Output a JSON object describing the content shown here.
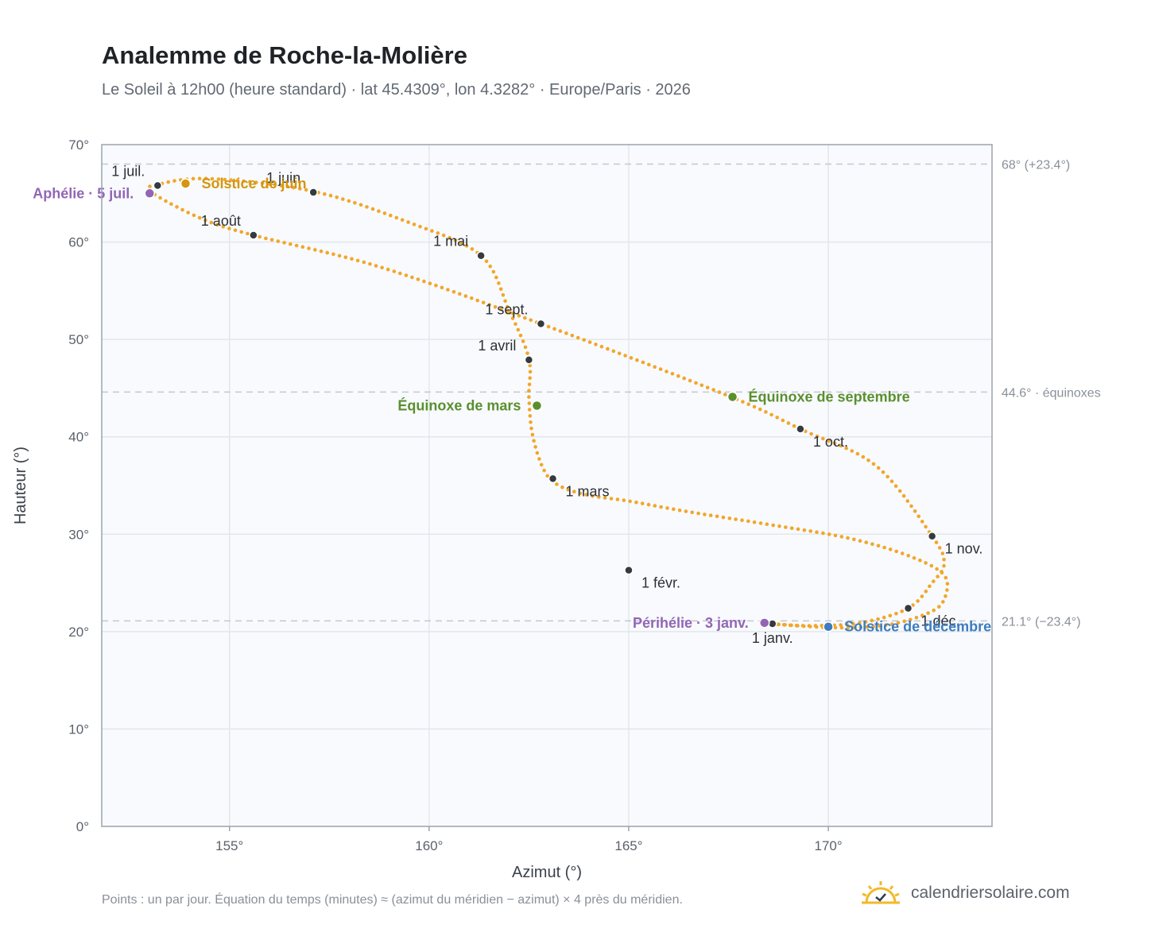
{
  "title": "Analemme de Roche-la-Molière",
  "subtitle": "Le Soleil à 12h00 (heure standard) · lat 45.4309°, lon 4.3282° · Europe/Paris · 2026",
  "footnote": "Points : un par jour. Équation du temps (minutes) ≈ (azimut du méridien − azimut) × 4 près du méridien.",
  "brand": {
    "name": "calendriersolaire.com",
    "logo_icon": "sun-check-icon"
  },
  "colors": {
    "curve": "#f2a62a",
    "month_marker": "#343a40",
    "solstice_june": "#d4960f",
    "solstice_december": "#3d7cc0",
    "equinox": "#5a8f2e",
    "aphelion_perihelion": "#9266b5",
    "plot_background": "#f8fafd",
    "grid": "#e3e7ec",
    "reference_line": "#c3c8cf"
  },
  "chart_data": {
    "type": "scatter",
    "xlabel": "Azimut (°)",
    "ylabel": "Hauteur (°)",
    "xlim": [
      151.8,
      174.1
    ],
    "ylim": [
      0,
      70
    ],
    "x_ticks": [
      155,
      160,
      165,
      170
    ],
    "x_tick_labels": [
      "155°",
      "160°",
      "165°",
      "170°"
    ],
    "y_ticks": [
      0,
      10,
      20,
      30,
      40,
      50,
      60,
      70
    ],
    "y_tick_labels": [
      "0°",
      "10°",
      "20°",
      "30°",
      "40°",
      "50°",
      "60°",
      "70°"
    ],
    "grid": true,
    "curve_points": [
      [
        168.6,
        20.8
      ],
      [
        170.2,
        20.4
      ],
      [
        171.5,
        20.7
      ],
      [
        172.5,
        21.9
      ],
      [
        172.9,
        23.3
      ],
      [
        172.9,
        25.8
      ],
      [
        172.0,
        27.8
      ],
      [
        170.5,
        29.6
      ],
      [
        168.5,
        31.0
      ],
      [
        166.5,
        32.3
      ],
      [
        165.0,
        33.4
      ],
      [
        164.0,
        34.0
      ],
      [
        163.3,
        34.9
      ],
      [
        162.9,
        36.4
      ],
      [
        162.6,
        40.0
      ],
      [
        162.5,
        44.0
      ],
      [
        162.5,
        48.0
      ],
      [
        162.0,
        53.0
      ],
      [
        161.3,
        58.6
      ],
      [
        159.5,
        62.0
      ],
      [
        157.1,
        65.2
      ],
      [
        154.5,
        66.5
      ],
      [
        153.2,
        65.9
      ],
      [
        153.05,
        65.1
      ],
      [
        154.3,
        62.4
      ],
      [
        155.6,
        60.7
      ],
      [
        158.8,
        57.4
      ],
      [
        162.8,
        51.6
      ],
      [
        167.5,
        44.2
      ],
      [
        169.3,
        40.8
      ],
      [
        171.2,
        37.0
      ],
      [
        172.6,
        29.8
      ],
      [
        172.9,
        27.0
      ],
      [
        172.6,
        25.0
      ],
      [
        172.0,
        22.4
      ],
      [
        170.8,
        20.9
      ],
      [
        169.5,
        20.6
      ],
      [
        168.6,
        20.8
      ]
    ],
    "month_markers": [
      {
        "label": "1 janv.",
        "x": 168.6,
        "y": 20.8,
        "pos": "below"
      },
      {
        "label": "1 févr.",
        "x": 165.0,
        "y": 26.3,
        "pos": "below-right"
      },
      {
        "label": "1 mars",
        "x": 163.1,
        "y": 35.7,
        "pos": "below-right"
      },
      {
        "label": "1 avril",
        "x": 162.5,
        "y": 47.9,
        "pos": "above-left"
      },
      {
        "label": "1 mai",
        "x": 161.3,
        "y": 58.6,
        "pos": "above-left"
      },
      {
        "label": "1 juin",
        "x": 157.1,
        "y": 65.1,
        "pos": "above-left"
      },
      {
        "label": "1 juil.",
        "x": 153.2,
        "y": 65.8,
        "pos": "above-left"
      },
      {
        "label": "1 août",
        "x": 155.6,
        "y": 60.7,
        "pos": "above-left"
      },
      {
        "label": "1 sept.",
        "x": 162.8,
        "y": 51.6,
        "pos": "above-left"
      },
      {
        "label": "1 oct.",
        "x": 169.3,
        "y": 40.8,
        "pos": "below-right"
      },
      {
        "label": "1 nov.",
        "x": 172.6,
        "y": 29.8,
        "pos": "below-right"
      },
      {
        "label": "1 déc.",
        "x": 172.0,
        "y": 22.4,
        "pos": "below-right"
      }
    ],
    "events": [
      {
        "label": "Solstice de juin",
        "x": 153.9,
        "y": 66.0,
        "color_key": "solstice_june",
        "pos": "right"
      },
      {
        "label": "Aphélie · 5 juil.",
        "x": 153.0,
        "y": 65.0,
        "color_key": "aphelion_perihelion",
        "pos": "left"
      },
      {
        "label": "Équinoxe de mars",
        "x": 162.7,
        "y": 43.2,
        "color_key": "equinox",
        "pos": "left"
      },
      {
        "label": "Équinoxe de septembre",
        "x": 167.6,
        "y": 44.1,
        "color_key": "equinox",
        "pos": "right"
      },
      {
        "label": "Périhélie · 3 janv.",
        "x": 168.4,
        "y": 20.9,
        "color_key": "aphelion_perihelion",
        "pos": "left"
      },
      {
        "label": "Solstice de décembre",
        "x": 170.0,
        "y": 20.5,
        "color_key": "solstice_december",
        "pos": "right"
      }
    ],
    "reference_lines": [
      {
        "y": 68.0,
        "label": "68° (+23.4°)"
      },
      {
        "y": 44.6,
        "label": "44.6° · équinoxes"
      },
      {
        "y": 21.1,
        "label": "21.1° (−23.4°)"
      }
    ]
  }
}
